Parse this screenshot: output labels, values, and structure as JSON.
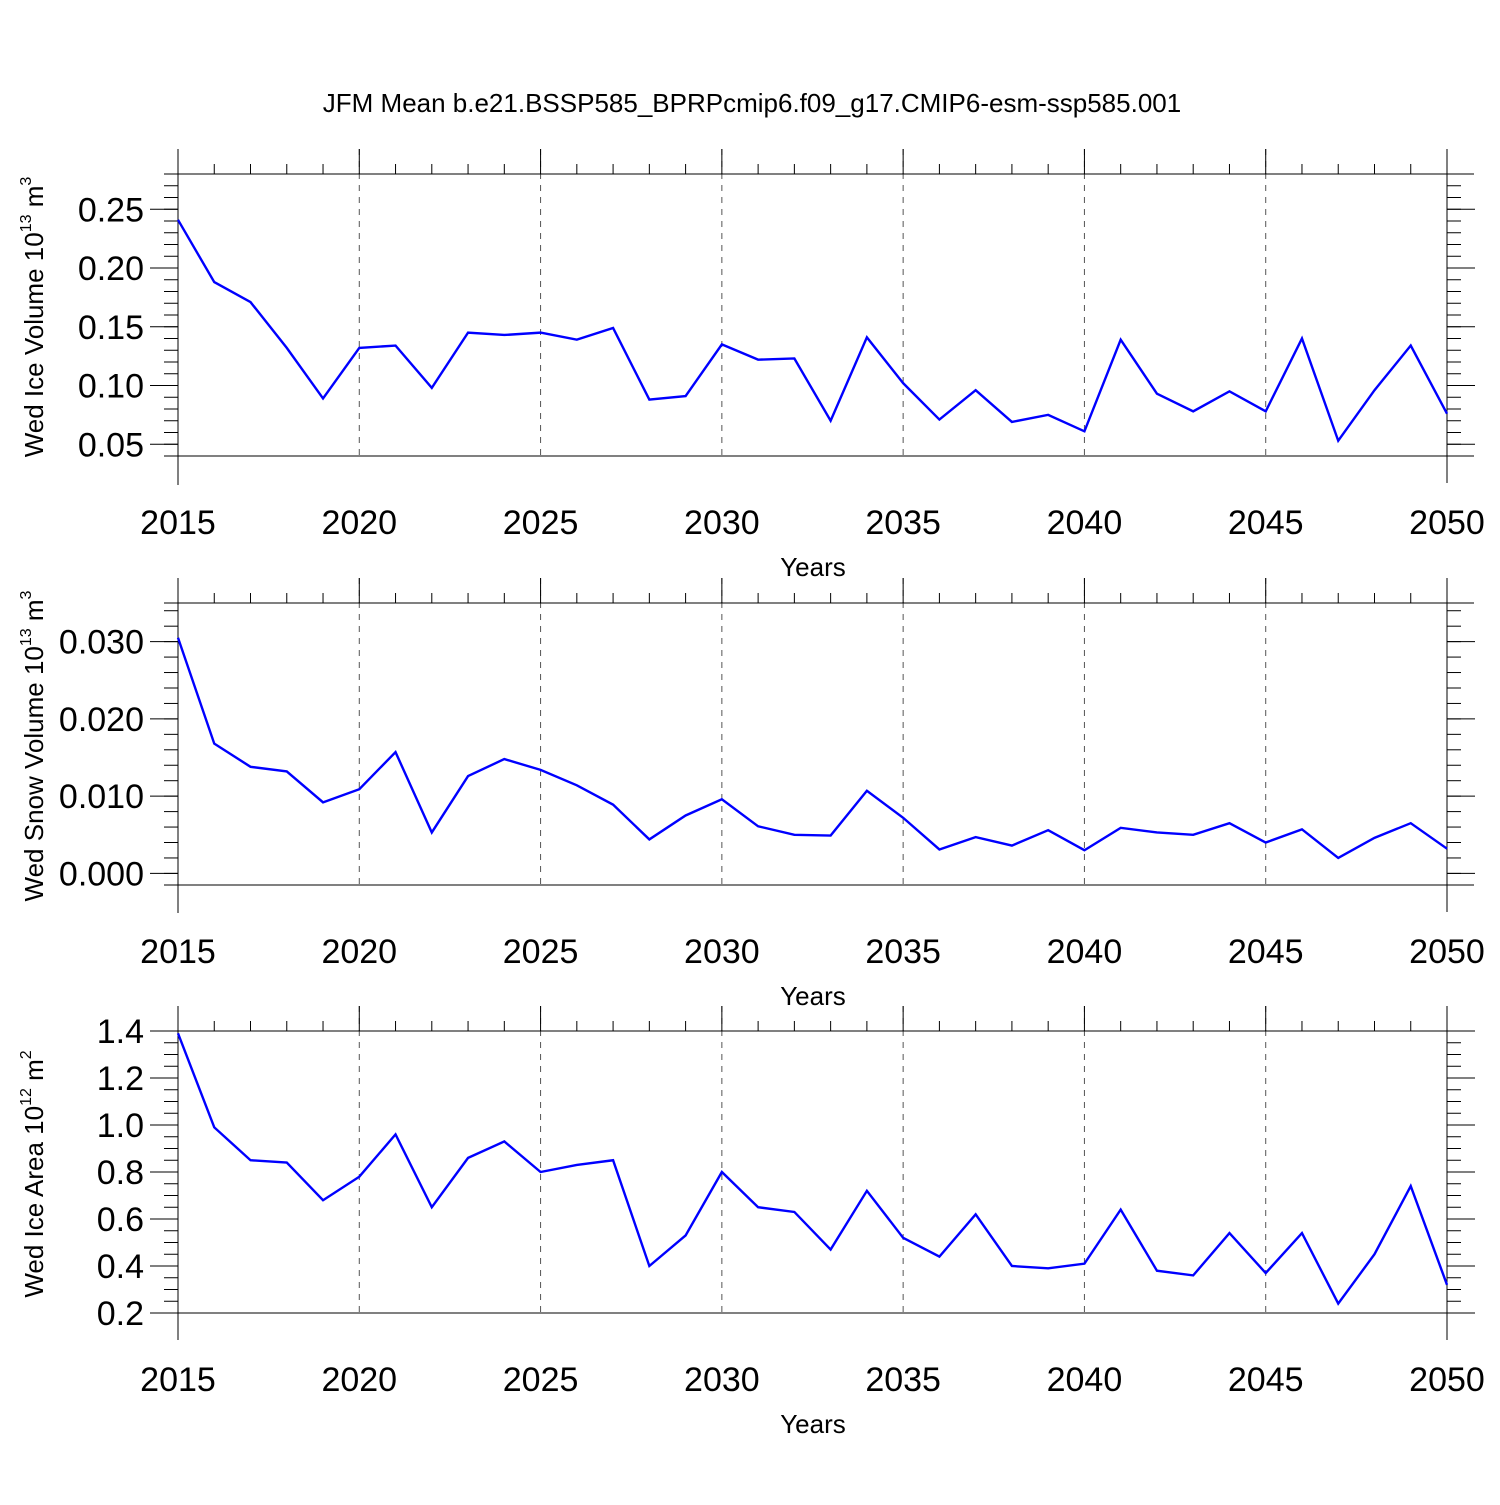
{
  "title": "JFM Mean b.e21.BSSP585_BPRPcmip6.f09_g17.CMIP6-esm-ssp585.001",
  "line_color": "#0000ff",
  "chart_data": [
    {
      "type": "line",
      "ylabel": {
        "main": "Wed Ice Volume 10",
        "exp": "13",
        "unit": " m",
        "unit_exp": "3"
      },
      "xlabel": "Years",
      "xlim": [
        2015,
        2050
      ],
      "ylim": [
        0.04,
        0.28
      ],
      "x_ticks": [
        "2015",
        "2020",
        "2025",
        "2030",
        "2035",
        "2040",
        "2045",
        "2050"
      ],
      "y_ticks": [
        "0.05",
        "0.10",
        "0.15",
        "0.20",
        "0.25"
      ],
      "y_tick_values": [
        0.05,
        0.1,
        0.15,
        0.2,
        0.25
      ],
      "y_minor_step": 0.01,
      "x": [
        2015,
        2016,
        2017,
        2018,
        2019,
        2020,
        2021,
        2022,
        2023,
        2024,
        2025,
        2026,
        2027,
        2028,
        2029,
        2030,
        2031,
        2032,
        2033,
        2034,
        2035,
        2036,
        2037,
        2038,
        2039,
        2040,
        2041,
        2042,
        2043,
        2044,
        2045,
        2046,
        2047,
        2048,
        2049,
        2050
      ],
      "values": [
        0.241,
        0.188,
        0.171,
        0.132,
        0.089,
        0.132,
        0.134,
        0.098,
        0.145,
        0.143,
        0.145,
        0.139,
        0.149,
        0.088,
        0.091,
        0.135,
        0.122,
        0.123,
        0.07,
        0.141,
        0.102,
        0.071,
        0.096,
        0.069,
        0.075,
        0.061,
        0.139,
        0.093,
        0.078,
        0.095,
        0.078,
        0.14,
        0.053,
        0.096,
        0.134,
        0.076
      ]
    },
    {
      "type": "line",
      "ylabel": {
        "main": "Wed Snow Volume 10",
        "exp": "13",
        "unit": " m",
        "unit_exp": "3"
      },
      "xlabel": "Years",
      "xlim": [
        2015,
        2050
      ],
      "ylim": [
        -0.0015,
        0.035
      ],
      "x_ticks": [
        "2015",
        "2020",
        "2025",
        "2030",
        "2035",
        "2040",
        "2045",
        "2050"
      ],
      "y_ticks": [
        "0.000",
        "0.010",
        "0.020",
        "0.030"
      ],
      "y_tick_values": [
        0.0,
        0.01,
        0.02,
        0.03
      ],
      "y_minor_step": 0.002,
      "x": [
        2015,
        2016,
        2017,
        2018,
        2019,
        2020,
        2021,
        2022,
        2023,
        2024,
        2025,
        2026,
        2027,
        2028,
        2029,
        2030,
        2031,
        2032,
        2033,
        2034,
        2035,
        2036,
        2037,
        2038,
        2039,
        2040,
        2041,
        2042,
        2043,
        2044,
        2045,
        2046,
        2047,
        2048,
        2049,
        2050
      ],
      "values": [
        0.0305,
        0.0168,
        0.0138,
        0.0132,
        0.0092,
        0.0109,
        0.0157,
        0.0053,
        0.0126,
        0.0148,
        0.0134,
        0.0114,
        0.0089,
        0.0044,
        0.0075,
        0.0096,
        0.0061,
        0.005,
        0.0049,
        0.0107,
        0.0072,
        0.0031,
        0.0047,
        0.0036,
        0.0056,
        0.003,
        0.0059,
        0.0053,
        0.005,
        0.0065,
        0.004,
        0.0057,
        0.002,
        0.0046,
        0.0065,
        0.0032
      ]
    },
    {
      "type": "line",
      "ylabel": {
        "main": "Wed Ice Area 10",
        "exp": "12",
        "unit": " m",
        "unit_exp": "2"
      },
      "xlabel": "Years",
      "xlim": [
        2015,
        2050
      ],
      "ylim": [
        0.2,
        1.4
      ],
      "x_ticks": [
        "2015",
        "2020",
        "2025",
        "2030",
        "2035",
        "2040",
        "2045",
        "2050"
      ],
      "y_ticks": [
        "0.2",
        "0.4",
        "0.6",
        "0.8",
        "1.0",
        "1.2",
        "1.4"
      ],
      "y_tick_values": [
        0.2,
        0.4,
        0.6,
        0.8,
        1.0,
        1.2,
        1.4
      ],
      "y_minor_step": 0.05,
      "x": [
        2015,
        2016,
        2017,
        2018,
        2019,
        2020,
        2021,
        2022,
        2023,
        2024,
        2025,
        2026,
        2027,
        2028,
        2029,
        2030,
        2031,
        2032,
        2033,
        2034,
        2035,
        2036,
        2037,
        2038,
        2039,
        2040,
        2041,
        2042,
        2043,
        2044,
        2045,
        2046,
        2047,
        2048,
        2049,
        2050
      ],
      "values": [
        1.39,
        0.99,
        0.85,
        0.84,
        0.68,
        0.78,
        0.96,
        0.65,
        0.86,
        0.93,
        0.8,
        0.83,
        0.85,
        0.4,
        0.53,
        0.8,
        0.65,
        0.63,
        0.47,
        0.72,
        0.52,
        0.44,
        0.62,
        0.4,
        0.39,
        0.41,
        0.64,
        0.38,
        0.36,
        0.54,
        0.37,
        0.54,
        0.24,
        0.45,
        0.74,
        0.32
      ]
    }
  ]
}
